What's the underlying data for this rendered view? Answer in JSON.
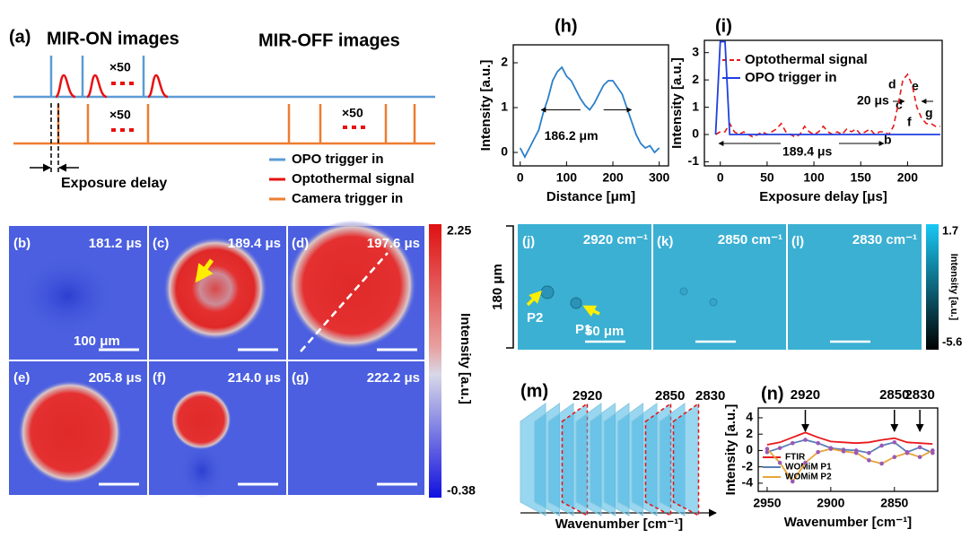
{
  "panel_a": {
    "label": "(a)",
    "on_title": "MIR-ON images",
    "off_title": "MIR-OFF images",
    "repeat": [
      "×50",
      "×50",
      "×50"
    ],
    "exposure": "Exposure delay",
    "legend": [
      "OPO trigger in",
      "Optothermal signal",
      "Camera trigger in"
    ]
  },
  "thermal_images": {
    "panels": [
      {
        "label": "(b)",
        "time": "181.2 μs"
      },
      {
        "label": "(c)",
        "time": "189.4 μs"
      },
      {
        "label": "(d)",
        "time": "197.6 μs"
      },
      {
        "label": "(e)",
        "time": "205.8 μs"
      },
      {
        "label": "(f)",
        "time": "214.0 μs"
      },
      {
        "label": "(g)",
        "time": "222.2 μs"
      }
    ],
    "scale_bar": "100 μm",
    "colorbar": {
      "max": "2.25",
      "min": "-0.38",
      "label": "Intensity [a.u.]"
    }
  },
  "womim_images": {
    "panels": [
      {
        "label": "(j)",
        "wavenumber": "2920 cm⁻¹"
      },
      {
        "label": "(k)",
        "wavenumber": "2850 cm⁻¹"
      },
      {
        "label": "(l)",
        "wavenumber": "2830 cm⁻¹"
      }
    ],
    "points": [
      "P2",
      "P1"
    ],
    "scale_bar": "50 μm",
    "field": "180 μm",
    "colorbar": {
      "max": "1.7",
      "min": "-5.6",
      "label": "Intensity [a.u.]"
    }
  },
  "panel_m": {
    "label": "(m)",
    "marks": [
      "2920",
      "2850",
      "2830"
    ],
    "axis": "Wavenumber [cm⁻¹]"
  },
  "chart_data": [
    {
      "type": "line",
      "label": "(h)",
      "x_label": "Distance [μm]",
      "y_label": "Intensity [a.u.]",
      "annotation": "186.2 μm",
      "x": [
        0,
        10,
        20,
        30,
        40,
        50,
        60,
        70,
        80,
        90,
        100,
        110,
        120,
        130,
        140,
        150,
        160,
        170,
        180,
        190,
        200,
        210,
        220,
        230,
        240,
        250,
        260,
        270,
        280,
        290,
        300
      ],
      "series": [
        {
          "color": "#2a7fc9",
          "values": [
            0.1,
            -0.1,
            0.1,
            0.3,
            0.5,
            0.9,
            1.2,
            1.6,
            1.8,
            1.9,
            1.7,
            1.6,
            1.4,
            1.2,
            1.05,
            0.95,
            1.1,
            1.3,
            1.5,
            1.6,
            1.6,
            1.45,
            1.3,
            1.0,
            0.7,
            0.4,
            0.2,
            0.1,
            0.15,
            0.0,
            0.1
          ]
        }
      ],
      "xlim": [
        -15,
        320
      ],
      "ylim": [
        -0.3,
        2.4
      ],
      "xticks": [
        0,
        100,
        200,
        300
      ],
      "yticks": [
        0,
        1,
        2
      ]
    },
    {
      "type": "line",
      "label": "(i)",
      "x_label": "Exposure delay [μs]",
      "y_label": "Intensity [a.u.]",
      "annotations": [
        "20 μs",
        "189.4 μs",
        "b",
        "c",
        "d",
        "e",
        "f",
        "g"
      ],
      "legend": "upper left",
      "x": [
        -5,
        0,
        5,
        10,
        15,
        20,
        25,
        30,
        35,
        40,
        45,
        50,
        55,
        60,
        65,
        70,
        75,
        80,
        85,
        90,
        95,
        100,
        105,
        110,
        115,
        120,
        125,
        130,
        135,
        140,
        145,
        150,
        155,
        160,
        165,
        170,
        175,
        180,
        185,
        190,
        195,
        200,
        205,
        210,
        215,
        220,
        225,
        230,
        235
      ],
      "series": [
        {
          "name": "Optothermal signal",
          "color": "#e41a1c",
          "style": "dashed",
          "values": [
            0,
            0.1,
            0.1,
            0.4,
            0.1,
            0,
            0.1,
            0,
            -0.1,
            0,
            0.1,
            0,
            0.1,
            0.2,
            0.4,
            0.1,
            0,
            -0.1,
            0,
            0.3,
            0.1,
            0,
            0.1,
            0.3,
            0.1,
            0,
            0.1,
            0,
            0.2,
            0.1,
            0.2,
            0,
            0.1,
            0.2,
            0,
            0.1,
            0.1,
            0,
            0.3,
            1.1,
            2.0,
            2.2,
            1.8,
            1.0,
            0.6,
            0.4,
            0.4,
            0.3,
            0.3
          ]
        },
        {
          "name": "OPO trigger in",
          "color": "#1f3fe0",
          "style": "solid",
          "values": [
            0,
            3.4,
            3.4,
            0,
            0,
            0,
            0,
            0,
            0,
            0,
            0,
            0,
            0,
            0,
            0,
            0,
            0,
            0,
            0,
            0,
            0,
            0,
            0,
            0,
            0,
            0,
            0,
            0,
            0,
            0,
            0,
            0,
            0,
            0,
            0,
            0,
            0,
            0,
            0,
            0,
            0,
            0,
            0,
            0,
            0,
            0,
            0,
            0,
            0
          ]
        }
      ],
      "xlim": [
        -17,
        237
      ],
      "ylim": [
        -1.15,
        3.45
      ],
      "xticks": [
        0,
        50,
        100,
        150,
        200
      ],
      "yticks": [
        -1,
        0,
        1,
        2,
        3
      ]
    },
    {
      "type": "line",
      "label": "(n)",
      "x_label": "Wavenumber [cm⁻¹]",
      "y_label": "Intensity [a.u.]",
      "legend": "lower left",
      "peaks": [
        2920,
        2850,
        2830
      ],
      "x": [
        2950,
        2940,
        2930,
        2920,
        2910,
        2900,
        2890,
        2880,
        2870,
        2860,
        2850,
        2840,
        2830,
        2820
      ],
      "series": [
        {
          "name": "FTIR",
          "color": "#e8191c",
          "style": "solid",
          "values": [
            0.7,
            1.0,
            1.6,
            2.2,
            1.6,
            1.1,
            1.0,
            0.9,
            1.0,
            1.3,
            1.5,
            1.0,
            0.9,
            0.8
          ]
        },
        {
          "name": "WOMiM P1",
          "color": "#5b7db8",
          "style": "solid",
          "markers": true,
          "values": [
            -0.2,
            0.3,
            0.9,
            1.3,
            0.9,
            0.3,
            0.1,
            0.0,
            -0.3,
            0.6,
            1.0,
            -0.2,
            0.4,
            -0.3
          ]
        },
        {
          "name": "WOMiM P2",
          "color": "#e8a53a",
          "style": "solid",
          "markers": true,
          "values": [
            0.2,
            -1.5,
            -3.8,
            -1.5,
            -0.2,
            0.2,
            -0.1,
            -0.3,
            -1.2,
            -1.6,
            -0.8,
            -0.3,
            -0.8,
            0.0
          ]
        }
      ],
      "xlim": [
        2957,
        2816
      ],
      "ylim": [
        -5,
        5.2
      ],
      "xticks": [
        2950,
        2900,
        2850
      ],
      "yticks": [
        4,
        2,
        0,
        -2,
        -4
      ]
    }
  ]
}
